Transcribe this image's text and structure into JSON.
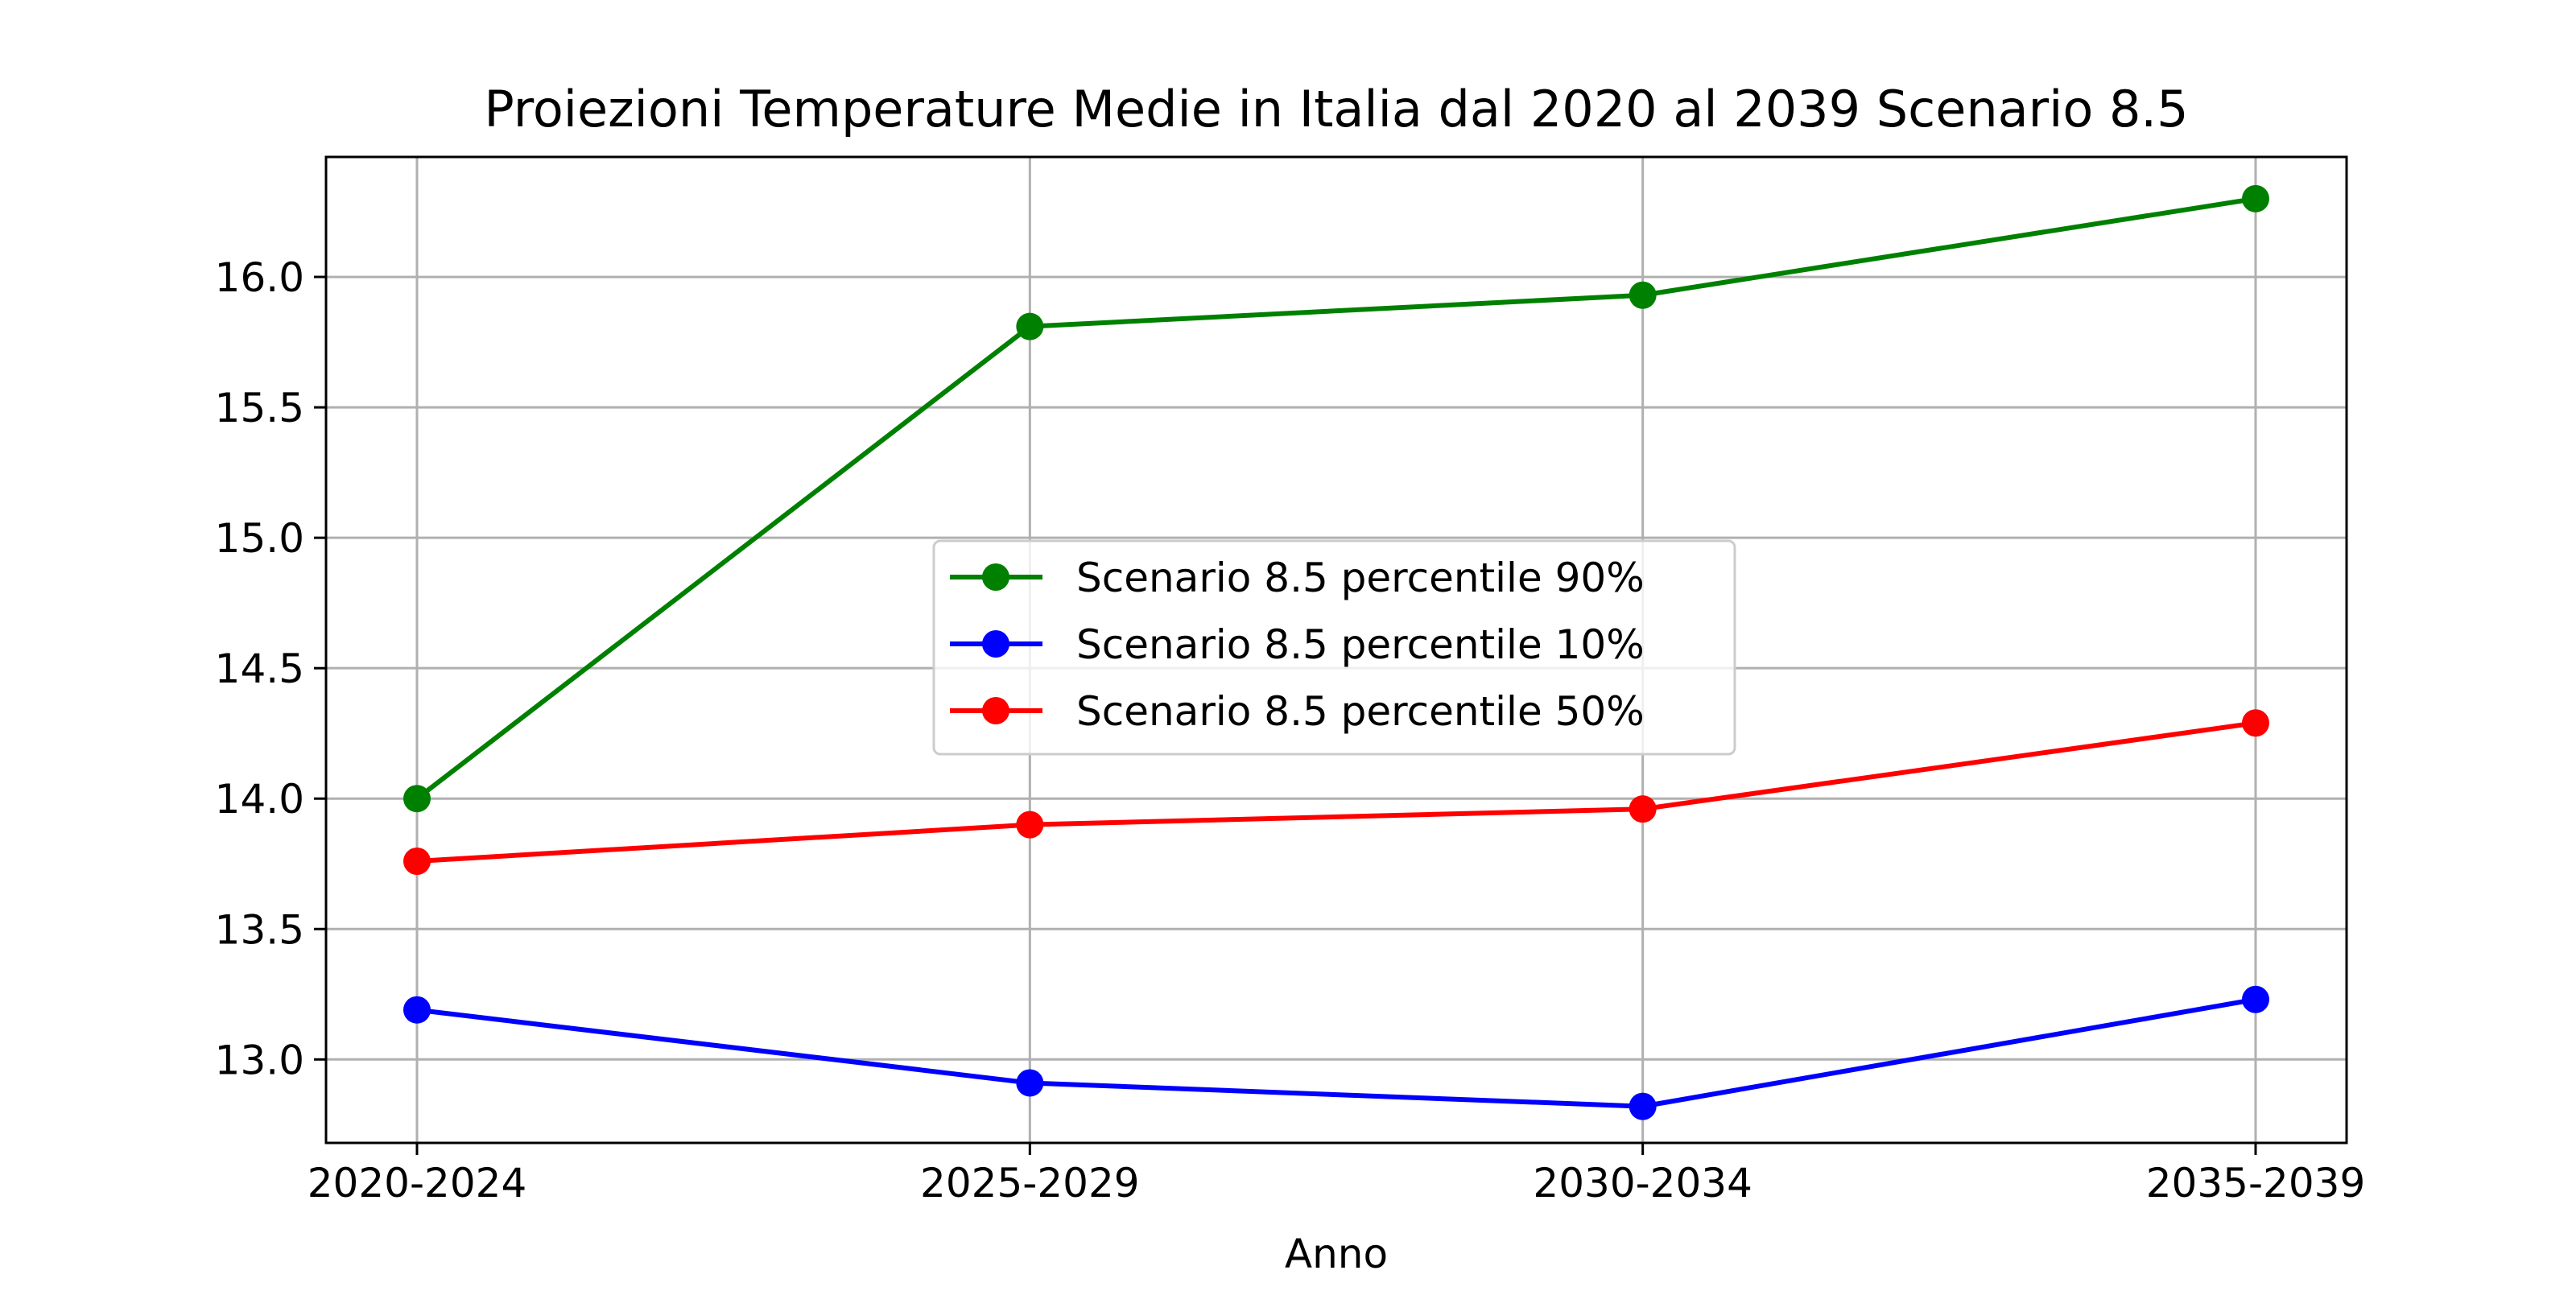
{
  "chart_data": {
    "type": "line",
    "title": "Proiezioni Temperature Medie in Italia dal 2020 al 2039 Scenario 8.5",
    "xlabel": "Anno",
    "ylabel": "",
    "categories": [
      "2020-2024",
      "2025-2029",
      "2030-2034",
      "2035-2039"
    ],
    "ylim": [
      12.68,
      16.46
    ],
    "yticks": [
      13.0,
      13.5,
      14.0,
      14.5,
      15.0,
      15.5,
      16.0
    ],
    "ytick_labels": [
      "13.0",
      "13.5",
      "14.0",
      "14.5",
      "15.0",
      "15.5",
      "16.0"
    ],
    "grid": true,
    "legend_position": "center",
    "series": [
      {
        "name": "Scenario 8.5 percentile 90%",
        "color": "#008000",
        "marker": "circle",
        "values": [
          14.0,
          15.81,
          15.93,
          16.3
        ]
      },
      {
        "name": "Scenario 8.5 percentile 10%",
        "color": "#0000ff",
        "marker": "circle",
        "values": [
          13.19,
          12.91,
          12.82,
          13.23
        ]
      },
      {
        "name": "Scenario 8.5 percentile 50%",
        "color": "#ff0000",
        "marker": "circle",
        "values": [
          13.76,
          13.9,
          13.96,
          14.29
        ]
      }
    ]
  }
}
